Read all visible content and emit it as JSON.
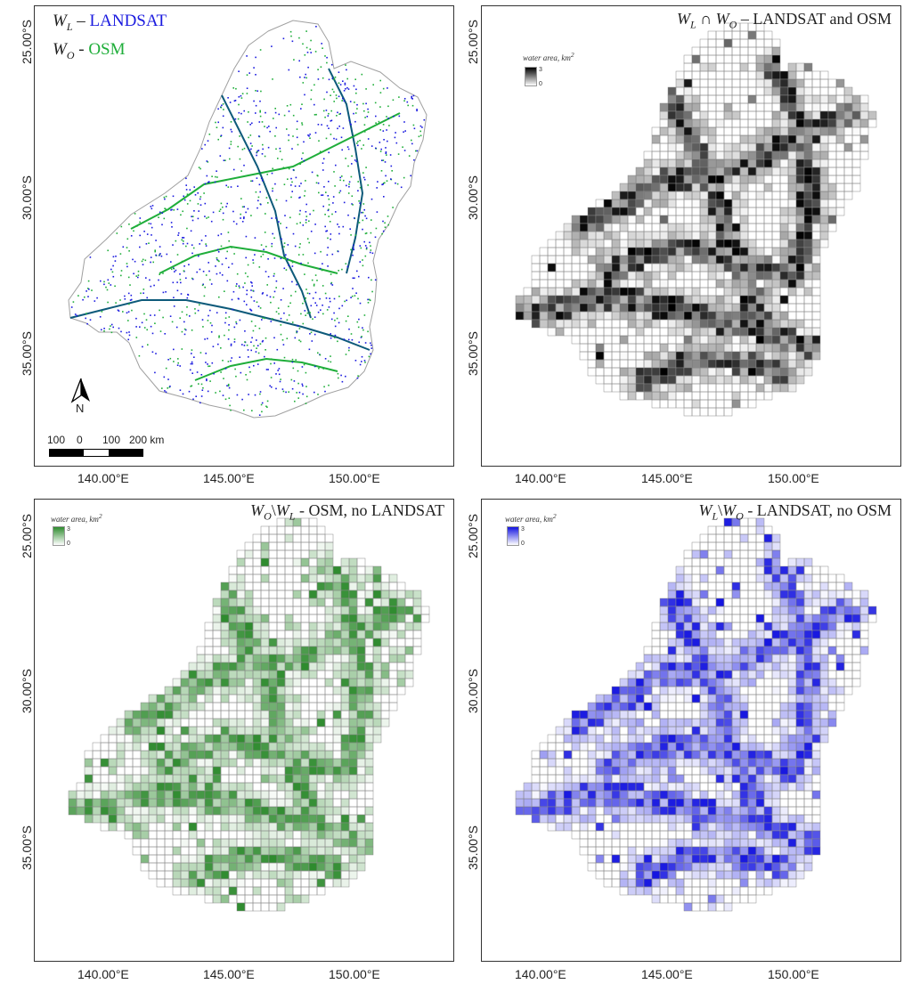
{
  "colors": {
    "landsat": "#1a1adf",
    "osm": "#1fae3a",
    "intersection": "#000000",
    "osm_only": "#2e8b2e",
    "landsat_only": "#1515e0",
    "grid_line": "#8a8a8a",
    "basin_outline": "#a0a0a0"
  },
  "axes": {
    "x_ticks": [
      "140.00°E",
      "145.00°E",
      "150.00°E"
    ],
    "y_ticks": [
      "25.00°S",
      "30.00°S",
      "35.00°S"
    ]
  },
  "panels": {
    "tl": {
      "legend_wl_sym": "W",
      "legend_wl_sub": "L",
      "legend_wl_dash": "–",
      "legend_wl_text": "LANDSAT",
      "legend_wo_sym": "W",
      "legend_wo_sub": "O",
      "legend_wo_dash": "-",
      "legend_wo_text": "OSM",
      "north_label": "N",
      "scale_labels": [
        "100",
        "0",
        "100",
        "200 km"
      ]
    },
    "tr": {
      "title_math": "W",
      "title_sub1": "L",
      "title_op": " ∩ ",
      "title_math2": "W",
      "title_sub2": "O",
      "title_text": " – LANDSAT and OSM",
      "legend_title": "water area, km",
      "legend_sup": "2",
      "legend_max": "3",
      "legend_min": "0"
    },
    "bl": {
      "title_math": "W",
      "title_sub1": "O",
      "title_op": "\\",
      "title_math2": "W",
      "title_sub2": "L",
      "title_text": " - OSM, no LANDSAT",
      "legend_title": "water area, km",
      "legend_sup": "2",
      "legend_max": "3",
      "legend_min": "0"
    },
    "br": {
      "title_math": "W",
      "title_sub1": "L",
      "title_op": "\\",
      "title_math2": "W",
      "title_sub2": "O",
      "title_text": " - LANDSAT, no OSM",
      "legend_title": "water area, km",
      "legend_sup": "2",
      "legend_max": "3",
      "legend_min": "0"
    }
  }
}
